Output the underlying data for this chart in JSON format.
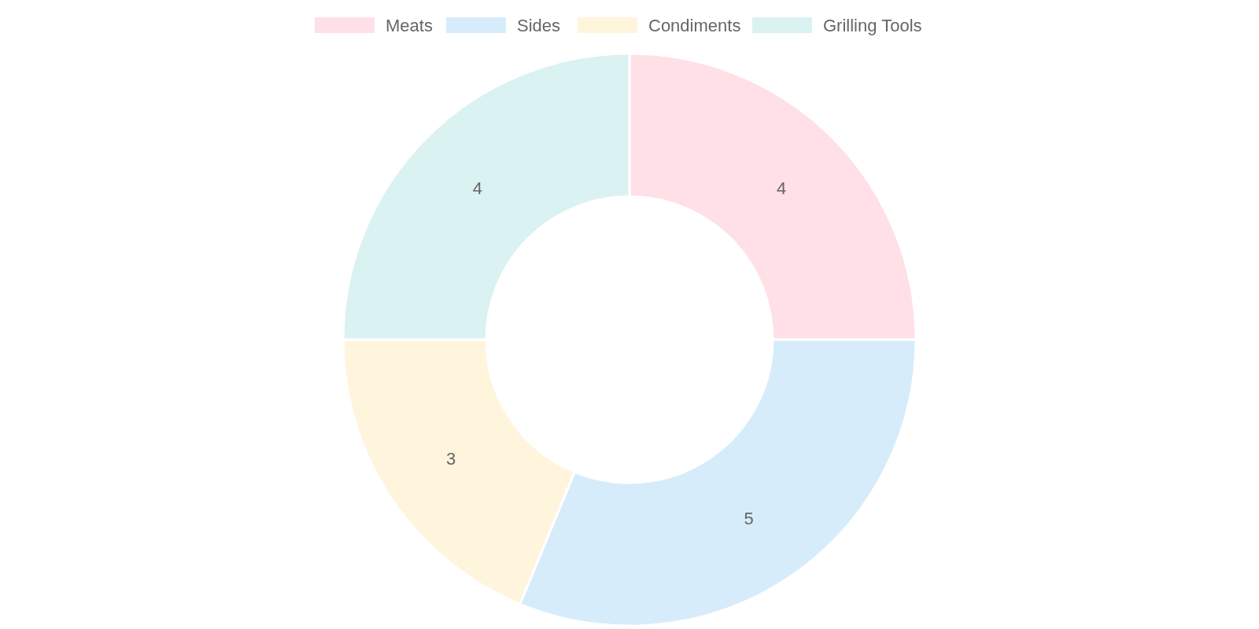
{
  "chart_data": {
    "type": "donut",
    "categories": [
      "Meats",
      "Sides",
      "Condiments",
      "Grilling Tools"
    ],
    "values": [
      4,
      5,
      3,
      4
    ],
    "colors": [
      "#ffe0e6",
      "#d7ecfb",
      "#fff5dd",
      "#dbf2f2"
    ],
    "legend": "top",
    "data_labels": true
  }
}
